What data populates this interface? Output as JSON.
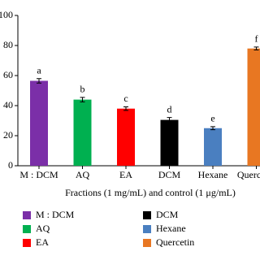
{
  "chart_data": {
    "type": "bar",
    "x_label": "Fractions (1 mg/mL) and control (1 μg/mL)",
    "categories": [
      "M : DCM",
      "AQ",
      "EA",
      "DCM",
      "Hexane",
      "Quercetin"
    ],
    "values": [
      56.5,
      44,
      38,
      30.5,
      25,
      78
    ],
    "errors": [
      1.5,
      1.5,
      1.2,
      1.6,
      1.0,
      1.0
    ],
    "annotations": [
      "a",
      "b",
      "c",
      "d",
      "e",
      "f"
    ],
    "colors": [
      "#7b2fa8",
      "#00b050",
      "#ff0000",
      "#000000",
      "#4a7fc0",
      "#e87722"
    ],
    "ylim": [
      0,
      100
    ],
    "yticks": [
      0,
      20,
      40,
      60,
      80,
      100
    ]
  }
}
